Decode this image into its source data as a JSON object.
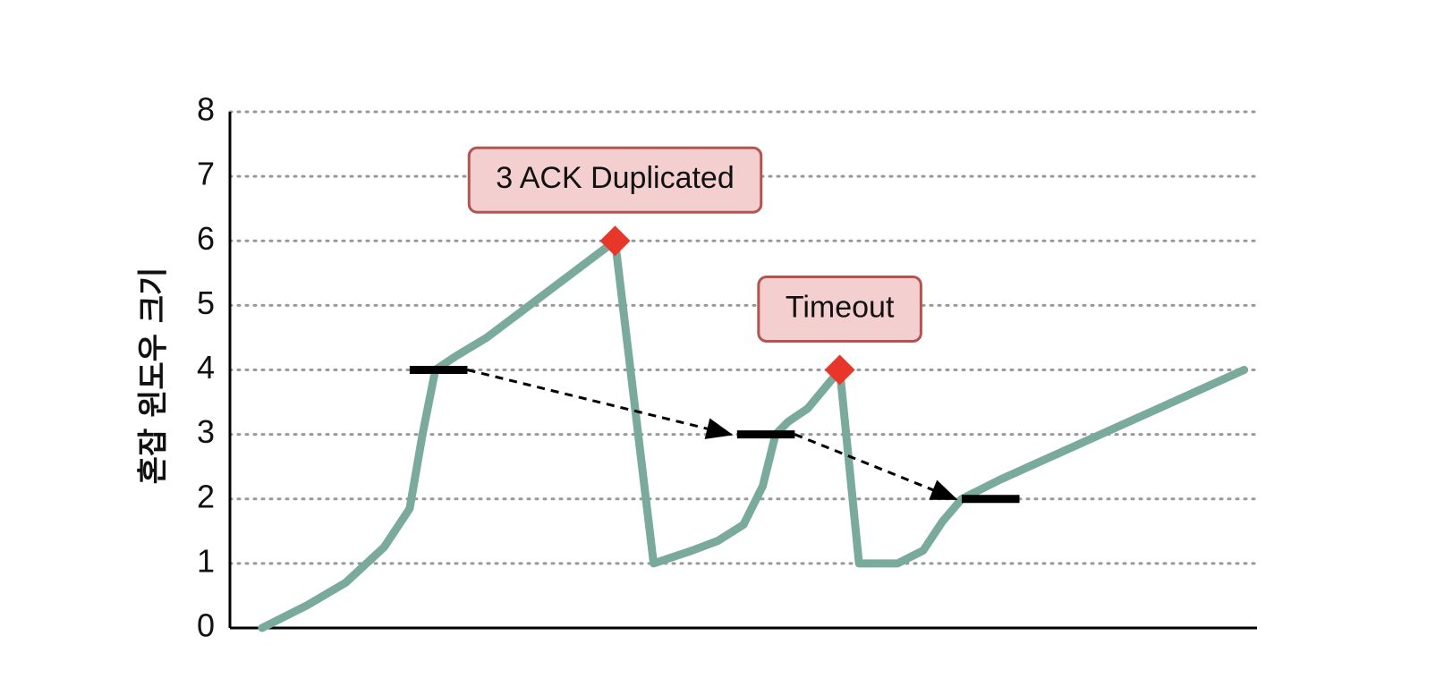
{
  "chart_data": {
    "type": "line",
    "title": "",
    "xlabel": "",
    "ylabel": "혼잡 윈도우 크기",
    "ylim": [
      0,
      8
    ],
    "yticks": [
      0,
      1,
      2,
      3,
      4,
      5,
      6,
      7,
      8
    ],
    "xlim": [
      0,
      16
    ],
    "grid": true,
    "colors": {
      "line": "#7aaa9c",
      "marker": "#e8372a",
      "annotation_fill": "#f3d0cf",
      "annotation_border": "#b5534f",
      "grid": "#999999",
      "threshold": "#000000"
    },
    "series": [
      {
        "x": [
          0.5,
          1.2,
          1.8,
          2.4,
          2.8,
          3.0,
          3.2,
          3.5,
          4.0,
          6.0,
          6.6,
          7.2,
          7.6,
          8.0,
          8.3,
          8.5,
          8.7,
          9.0,
          9.5,
          9.8,
          10.4,
          10.8,
          11.1,
          11.4,
          12.0,
          15.8
        ],
        "y": [
          0,
          0.35,
          0.7,
          1.25,
          1.85,
          3.0,
          4.0,
          4.2,
          4.5,
          6.0,
          1.0,
          1.2,
          1.35,
          1.6,
          2.2,
          3.0,
          3.2,
          3.4,
          4.0,
          1.0,
          1.0,
          1.2,
          1.65,
          2.0,
          2.3,
          4.0
        ]
      }
    ],
    "loss_events": [
      {
        "label": "3 ACK Duplicated",
        "x": 6.0,
        "y": 6.0
      },
      {
        "label": "Timeout",
        "x": 9.5,
        "y": 4.0
      }
    ],
    "thresholds": [
      {
        "x": [
          2.8,
          3.7
        ],
        "y": 4
      },
      {
        "x": [
          7.9,
          8.8
        ],
        "y": 3
      },
      {
        "x": [
          11.4,
          12.3
        ],
        "y": 2
      }
    ],
    "threshold_arrows": [
      {
        "from": [
          3.7,
          4
        ],
        "to": [
          7.8,
          3
        ]
      },
      {
        "from": [
          8.8,
          3
        ],
        "to": [
          11.3,
          2
        ]
      }
    ]
  }
}
